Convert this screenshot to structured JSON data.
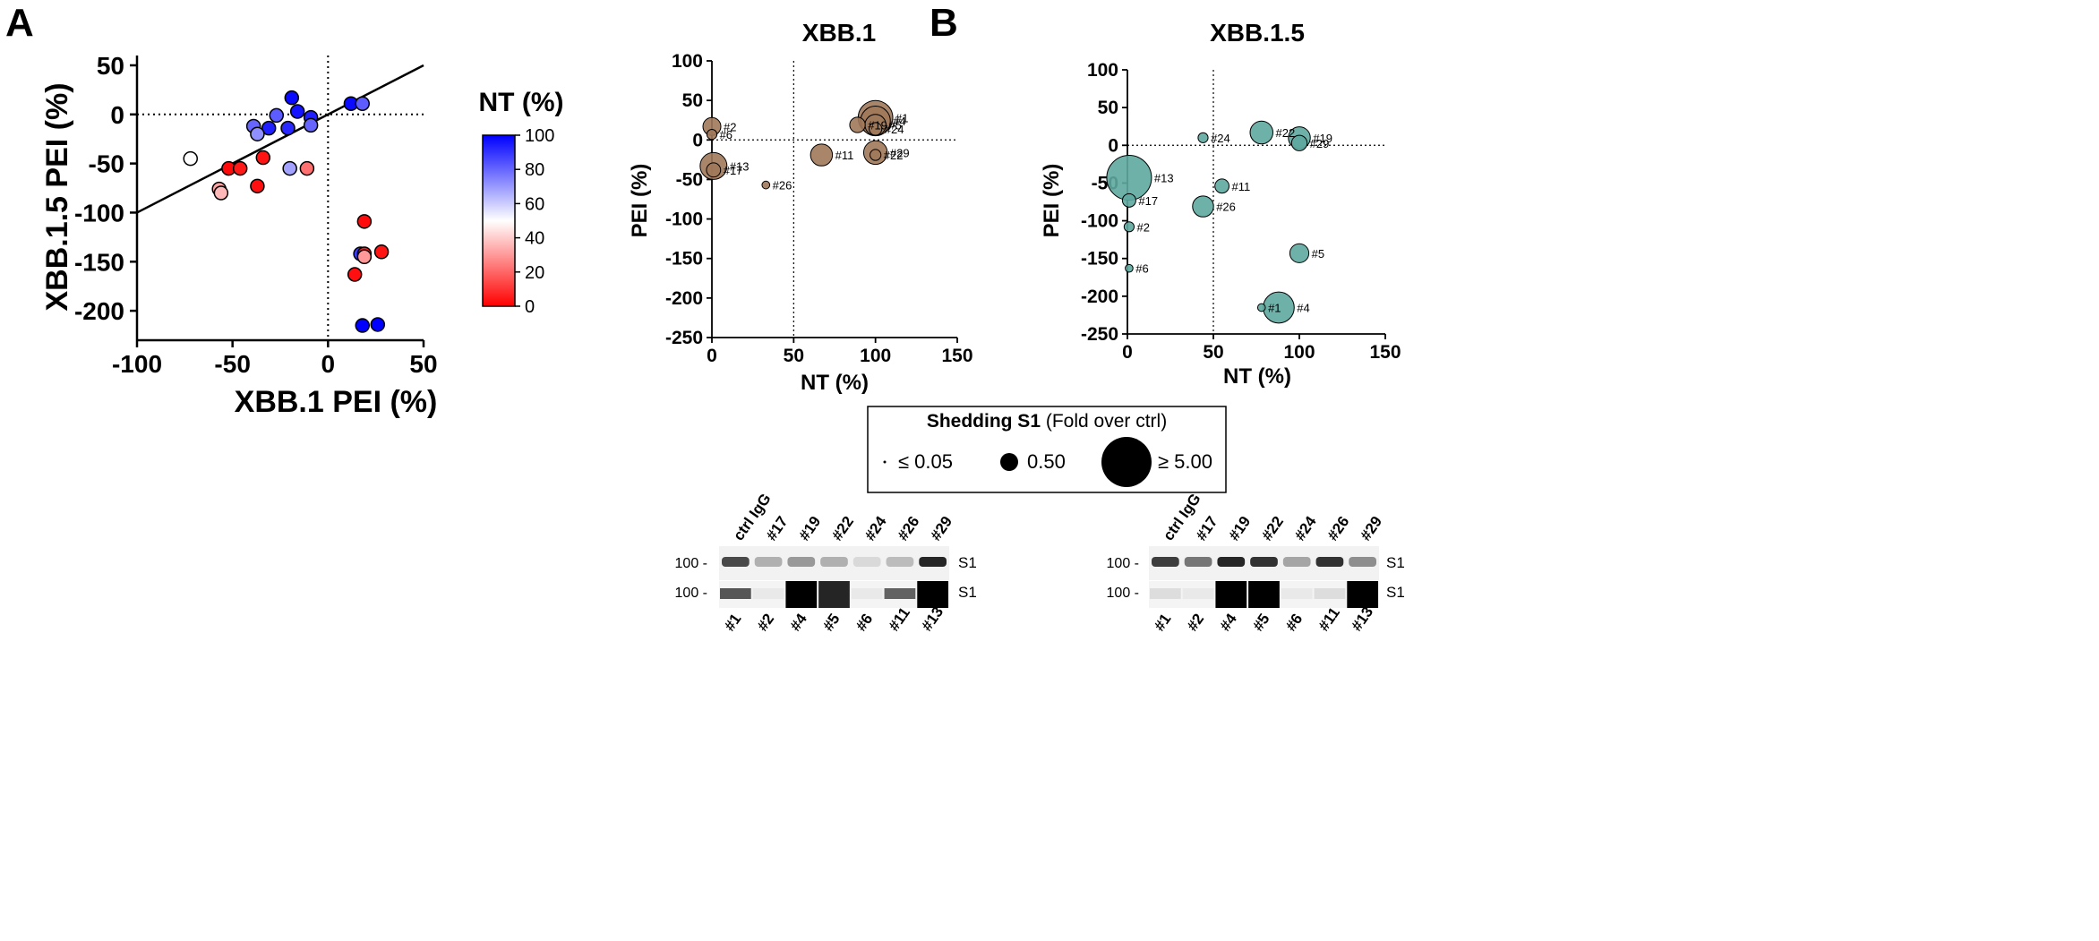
{
  "panel_labels": {
    "a": "A",
    "b": "B"
  },
  "chart_data": [
    {
      "id": "scatterA",
      "type": "scatter",
      "title": "",
      "xlabel": "XBB.1 PEI (%)",
      "ylabel": "XBB.1.5 PEI (%)",
      "xlim": [
        -100,
        50
      ],
      "ylim": [
        -230,
        60
      ],
      "xticks": [
        -100,
        -50,
        0,
        50
      ],
      "yticks": [
        50,
        0,
        -50,
        -100,
        -150,
        -200
      ],
      "reference_line": {
        "x1": -100,
        "y1": -100,
        "x2": 50,
        "y2": 50
      },
      "colorbar": {
        "title": "NT (%)",
        "min": 0,
        "max": 100,
        "ticks": [
          0,
          20,
          40,
          60,
          80,
          100
        ],
        "low_color": "#ff0000",
        "mid_color": "#ffffff",
        "high_color": "#0000ff"
      },
      "points": [
        {
          "x": -19,
          "y": 17,
          "nt": 98
        },
        {
          "x": -16,
          "y": 3,
          "nt": 96
        },
        {
          "x": -9,
          "y": -3,
          "nt": 94
        },
        {
          "x": -27,
          "y": -1,
          "nt": 82
        },
        {
          "x": -9,
          "y": -11,
          "nt": 80
        },
        {
          "x": -31,
          "y": -14,
          "nt": 94
        },
        {
          "x": -21,
          "y": -14,
          "nt": 92
        },
        {
          "x": -39,
          "y": -12,
          "nt": 80
        },
        {
          "x": -37,
          "y": -20,
          "nt": 72
        },
        {
          "x": 12,
          "y": 11,
          "nt": 98
        },
        {
          "x": 18,
          "y": 11,
          "nt": 82
        },
        {
          "x": -72,
          "y": -45,
          "nt": 50
        },
        {
          "x": -52,
          "y": -55,
          "nt": 2
        },
        {
          "x": -46,
          "y": -55,
          "nt": 5
        },
        {
          "x": -34,
          "y": -44,
          "nt": 4
        },
        {
          "x": -20,
          "y": -55,
          "nt": 68
        },
        {
          "x": -11,
          "y": -55,
          "nt": 22
        },
        {
          "x": -57,
          "y": -76,
          "nt": 32
        },
        {
          "x": -56,
          "y": -80,
          "nt": 36
        },
        {
          "x": -37,
          "y": -73,
          "nt": 3
        },
        {
          "x": 19,
          "y": -109,
          "nt": 2
        },
        {
          "x": 17,
          "y": -142,
          "nt": 88
        },
        {
          "x": 19,
          "y": -142,
          "nt": 5
        },
        {
          "x": 28,
          "y": -140,
          "nt": 4
        },
        {
          "x": 19,
          "y": -145,
          "nt": 30
        },
        {
          "x": 14,
          "y": -163,
          "nt": 3
        },
        {
          "x": 18,
          "y": -215,
          "nt": 100
        },
        {
          "x": 26,
          "y": -214,
          "nt": 100
        }
      ]
    },
    {
      "id": "bubbleXBB1",
      "type": "scatter",
      "title": "XBB.1",
      "xlabel": "NT (%)",
      "ylabel": "PEI (%)",
      "xlim": [
        0,
        150
      ],
      "ylim": [
        -250,
        100
      ],
      "xticks": [
        0,
        50,
        100,
        150
      ],
      "yticks": [
        100,
        50,
        0,
        -50,
        -100,
        -150,
        -200,
        -250
      ],
      "fill": "#a0785a",
      "points": [
        {
          "label": "#2",
          "x": 0,
          "y": 17,
          "s": 0.8
        },
        {
          "label": "#6",
          "x": 0,
          "y": 7,
          "s": 0.25
        },
        {
          "label": "#13",
          "x": 1,
          "y": -33,
          "s": 1.8
        },
        {
          "label": "#17",
          "x": 1,
          "y": -38,
          "s": 0.5
        },
        {
          "label": "#26",
          "x": 33,
          "y": -57,
          "s": 0.15
        },
        {
          "label": "#11",
          "x": 67,
          "y": -19,
          "s": 1.2
        },
        {
          "label": "#19",
          "x": 89,
          "y": 19,
          "s": 0.6
        },
        {
          "label": "#1",
          "x": 100,
          "y": 28,
          "s": 3.0
        },
        {
          "label": "#4",
          "x": 100,
          "y": 24,
          "s": 2.2
        },
        {
          "label": "#5",
          "x": 100,
          "y": 19,
          "s": 1.1
        },
        {
          "label": "#24",
          "x": 100,
          "y": 14,
          "s": 0.4
        },
        {
          "label": "#29",
          "x": 100,
          "y": -16,
          "s": 1.4
        },
        {
          "label": "#22",
          "x": 100,
          "y": -19,
          "s": 0.3
        }
      ]
    },
    {
      "id": "bubbleXBB15",
      "type": "scatter",
      "title": "XBB.1.5",
      "xlabel": "NT (%)",
      "ylabel": "PEI (%)",
      "xlim": [
        0,
        150
      ],
      "ylim": [
        -250,
        100
      ],
      "xticks": [
        0,
        50,
        100,
        150
      ],
      "yticks": [
        100,
        50,
        0,
        -50,
        -100,
        -150,
        -200,
        -250
      ],
      "fill": "#5ea8a0",
      "points": [
        {
          "label": "#22",
          "x": 78,
          "y": 17,
          "s": 1.3
        },
        {
          "label": "#19",
          "x": 100,
          "y": 10,
          "s": 1.2
        },
        {
          "label": "#29",
          "x": 100,
          "y": 3,
          "s": 0.6
        },
        {
          "label": "#24",
          "x": 44,
          "y": 10,
          "s": 0.25
        },
        {
          "label": "#13",
          "x": 1,
          "y": -43,
          "s": 5.0
        },
        {
          "label": "#11",
          "x": 55,
          "y": -54,
          "s": 0.5
        },
        {
          "label": "#17",
          "x": 1,
          "y": -73,
          "s": 0.45
        },
        {
          "label": "#26",
          "x": 44,
          "y": -81,
          "s": 1.1
        },
        {
          "label": "#2",
          "x": 1,
          "y": -108,
          "s": 0.25
        },
        {
          "label": "#5",
          "x": 100,
          "y": -143,
          "s": 0.9
        },
        {
          "label": "#6",
          "x": 1,
          "y": -163,
          "s": 0.15
        },
        {
          "label": "#1",
          "x": 78,
          "y": -215,
          "s": 0.15
        },
        {
          "label": "#4",
          "x": 88,
          "y": -215,
          "s": 2.4
        }
      ]
    }
  ],
  "legend": {
    "title_bold": "Shedding S1",
    "title_rest": " (Fold over ctrl)",
    "items": [
      {
        "label": "≤ 0.05",
        "s": 0.05
      },
      {
        "label": "0.50",
        "s": 0.5
      },
      {
        "label": "≥ 5.00",
        "s": 5.0
      }
    ]
  },
  "blots": [
    {
      "id": "blot-left",
      "top_lanes": [
        "ctrl IgG",
        "#17",
        "#19",
        "#22",
        "#24",
        "#26",
        "#29"
      ],
      "bottom_lanes": [
        "#1",
        "#2",
        "#4",
        "#5",
        "#6",
        "#11",
        "#13"
      ],
      "marker": "100 -",
      "band_label": "S1",
      "top_intensity": [
        0.75,
        0.3,
        0.4,
        0.3,
        0.12,
        0.25,
        0.9
      ],
      "bottom_intensity": [
        0.65,
        0.05,
        1.0,
        0.85,
        0.05,
        0.6,
        1.0
      ]
    },
    {
      "id": "blot-right",
      "top_lanes": [
        "ctrl IgG",
        "#17",
        "#19",
        "#22",
        "#24",
        "#26",
        "#29"
      ],
      "bottom_lanes": [
        "#1",
        "#2",
        "#4",
        "#5",
        "#6",
        "#11",
        "#13"
      ],
      "marker": "100 -",
      "band_label": "S1",
      "top_intensity": [
        0.8,
        0.55,
        0.9,
        0.85,
        0.35,
        0.85,
        0.45
      ],
      "bottom_intensity": [
        0.1,
        0.05,
        1.0,
        1.0,
        0.05,
        0.1,
        1.0
      ]
    }
  ]
}
